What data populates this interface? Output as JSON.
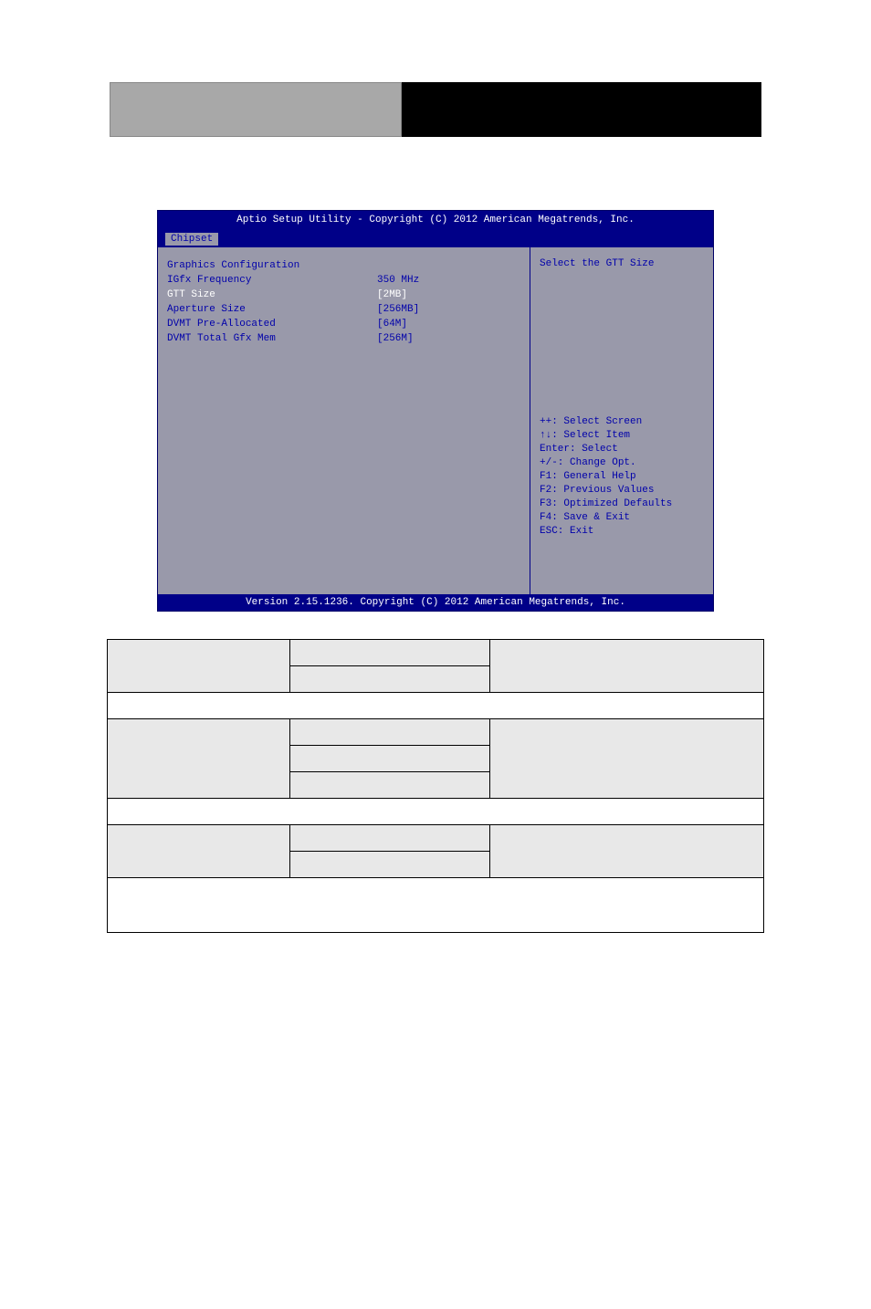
{
  "header": {
    "bg_left": "#a8a8a8",
    "bg_right": "#000000"
  },
  "bios": {
    "title": "Aptio Setup Utility - Copyright (C) 2012 American Megatrends, Inc.",
    "tab": "Chipset",
    "footer": "Version 2.15.1236. Copyright (C) 2012 American Megatrends, Inc.",
    "colors": {
      "title_bg": "#000088",
      "title_fg": "#ffffff",
      "body_bg": "#9999aa",
      "text": "#0000aa",
      "highlight": "#ffffff"
    },
    "section_title": "Graphics Configuration",
    "rows": [
      {
        "label": "IGfx Frequency",
        "value": "350 MHz",
        "highlighted": false
      },
      {
        "label": "",
        "value": "",
        "highlighted": false
      },
      {
        "label": "GTT Size",
        "value": "[2MB]",
        "highlighted": true
      },
      {
        "label": "Aperture Size",
        "value": "[256MB]",
        "highlighted": false
      },
      {
        "label": "DVMT Pre-Allocated",
        "value": "[64M]",
        "highlighted": false
      },
      {
        "label": "DVMT Total Gfx Mem",
        "value": "[256M]",
        "highlighted": false
      }
    ],
    "help_text": "Select the GTT Size",
    "keys": [
      "++: Select Screen",
      "↑↓: Select Item",
      "Enter: Select",
      "+/-: Change Opt.",
      "F1: General Help",
      "F2: Previous Values",
      "F3: Optimized Defaults",
      "F4: Save & Exit",
      "ESC: Exit"
    ]
  },
  "table": {
    "rows": [
      {
        "type": "multi",
        "col1": "",
        "col2a": "",
        "col2b": "",
        "col3": "",
        "gray": true
      },
      {
        "type": "single",
        "text": "",
        "gray": false
      },
      {
        "type": "triple",
        "col1": "",
        "col2a": "",
        "col2b": "",
        "col2c": "",
        "col3": "",
        "gray": true
      },
      {
        "type": "single",
        "text": "",
        "gray": false
      },
      {
        "type": "multi",
        "col1": "",
        "col2a": "",
        "col2b": "",
        "col3": "",
        "gray": true
      },
      {
        "type": "single",
        "text": "",
        "gray": false
      }
    ]
  }
}
